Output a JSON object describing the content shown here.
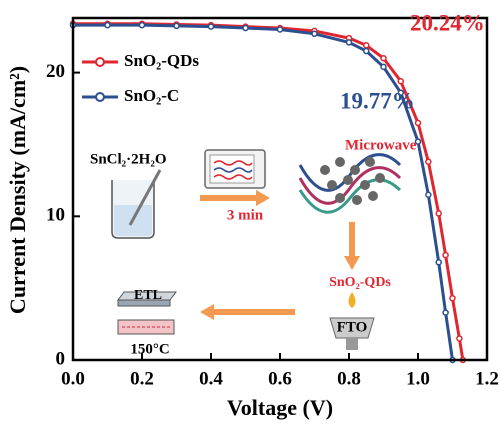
{
  "chart_data": {
    "type": "line",
    "x_label": "Voltage (V)",
    "y_label": "Current Density (mA/cm²)",
    "x": [
      0,
      0.1,
      0.2,
      0.3,
      0.4,
      0.5,
      0.6,
      0.7,
      0.8,
      0.85,
      0.9,
      0.95,
      1.0,
      1.03,
      1.06,
      1.08,
      1.1,
      1.12,
      1.13
    ],
    "series": [
      {
        "name": "SnO₂-QDs",
        "color": "#e0262f",
        "values": [
          23.4,
          23.4,
          23.4,
          23.35,
          23.3,
          23.2,
          23.1,
          22.9,
          22.4,
          21.9,
          21.0,
          19.4,
          16.5,
          13.8,
          10.2,
          7.3,
          4.3,
          1.5,
          0
        ]
      },
      {
        "name": "SnO₂-C",
        "color": "#2b4f8f",
        "values": [
          23.3,
          23.3,
          23.3,
          23.25,
          23.2,
          23.1,
          23.0,
          22.7,
          22.1,
          21.5,
          20.4,
          18.6,
          15.2,
          11.5,
          6.8,
          3.3,
          0,
          null,
          null
        ]
      }
    ],
    "xlim": [
      0,
      1.2
    ],
    "xticks": [
      {
        "value": 0,
        "label": "0.0"
      },
      0.2,
      0.4,
      0.6,
      0.8,
      {
        "value": 1,
        "label": "1.0"
      },
      1.2
    ],
    "ylim": [
      0,
      23.8
    ],
    "yticks": [
      0,
      10,
      20
    ],
    "legend": "upper left",
    "annotations": [
      {
        "text": "20.24%",
        "color": "#e0262f"
      },
      {
        "text": "19.77%",
        "color": "#2b4f8f"
      },
      {
        "text": "SnCl₂·2H₂O",
        "color": "#000000"
      },
      {
        "text": "Microwave",
        "color": "#e0262f"
      },
      {
        "text": "3 min",
        "color": "#e0262f"
      },
      {
        "text": "SnO₂-QDs",
        "color": "#e0262f"
      },
      {
        "text": "FTO",
        "color": "#000000"
      },
      {
        "text": "ETL",
        "color": "#000000"
      },
      {
        "text": "150°C",
        "color": "#000000"
      }
    ]
  }
}
